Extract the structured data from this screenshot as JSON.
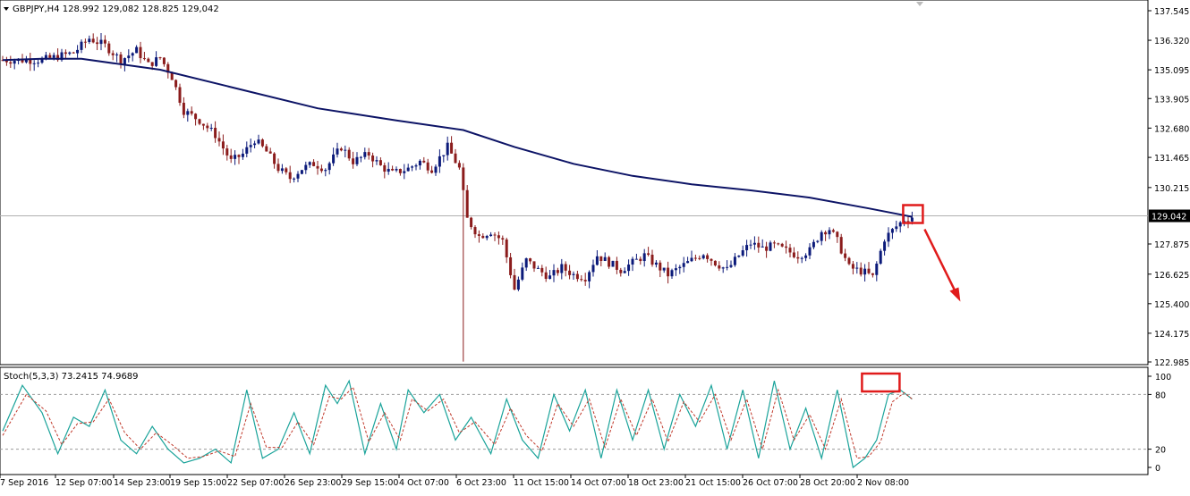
{
  "header": {
    "symbol_line": "GBPJPY,H4  128.992 129,082 128.825 129,042"
  },
  "stoch_header": {
    "label": "Stoch(5,3,3) 73.2415 74.9689"
  },
  "colors": {
    "bull": "#0b1a7a",
    "bear": "#8b1c1c",
    "ma": "#0d1466",
    "stoch_main": "#1aa39a",
    "stoch_signal": "#c0392b",
    "annotation": "#e01b1b",
    "axis": "#000000"
  },
  "chart_data": [
    {
      "type": "candlestick",
      "title": "GBPJPY,H4",
      "y_ticks": [
        "137.545",
        "136.320",
        "135.095",
        "133.905",
        "132.680",
        "131.465",
        "130.215",
        "127.875",
        "126.625",
        "125.400",
        "124.175",
        "122.985"
      ],
      "ylim": [
        122.985,
        137.545
      ],
      "current_price": "129.042",
      "x_ticks": [
        "7 Sep 2016",
        "12 Sep 07:00",
        "14 Sep 23:00",
        "19 Sep 15:00",
        "22 Sep 07:00",
        "26 Sep 23:00",
        "29 Sep 15:00",
        "4 Oct 07:00",
        "6 Oct 23:00",
        "11 Oct 15:00",
        "14 Oct 07:00",
        "18 Oct 23:00",
        "21 Oct 15:00",
        "26 Oct 07:00",
        "28 Oct 20:00",
        "2 Nov 08:00"
      ],
      "price_path": [
        [
          0,
          135.5
        ],
        [
          10,
          135.5
        ],
        [
          18,
          135.8
        ],
        [
          22,
          136.4
        ],
        [
          26,
          136.1
        ],
        [
          30,
          135.5
        ],
        [
          34,
          135.9
        ],
        [
          37,
          135.3
        ],
        [
          40,
          135.6
        ],
        [
          43,
          134.8
        ],
        [
          46,
          133.4
        ],
        [
          50,
          133.0
        ],
        [
          54,
          132.4
        ],
        [
          58,
          131.3
        ],
        [
          61,
          131.6
        ],
        [
          64,
          132.2
        ],
        [
          67,
          131.7
        ],
        [
          70,
          131.0
        ],
        [
          73,
          130.6
        ],
        [
          76,
          131.0
        ],
        [
          79,
          131.2
        ],
        [
          82,
          131.0
        ],
        [
          86,
          131.9
        ],
        [
          89,
          131.3
        ],
        [
          93,
          131.6
        ],
        [
          96,
          131.1
        ],
        [
          99,
          130.8
        ],
        [
          103,
          131.0
        ],
        [
          106,
          131.3
        ],
        [
          109,
          131.0
        ],
        [
          113,
          131.9
        ],
        [
          116,
          131.0
        ],
        [
          118,
          128.9
        ],
        [
          121,
          128.2
        ],
        [
          124,
          128.4
        ],
        [
          127,
          128.0
        ],
        [
          130,
          126.0
        ],
        [
          133,
          127.2
        ],
        [
          136,
          126.8
        ],
        [
          139,
          126.5
        ],
        [
          142,
          126.9
        ],
        [
          145,
          126.6
        ],
        [
          148,
          126.5
        ],
        [
          151,
          127.4
        ],
        [
          154,
          127.1
        ],
        [
          157,
          126.8
        ],
        [
          160,
          127.1
        ],
        [
          163,
          127.4
        ],
        [
          166,
          127.0
        ],
        [
          169,
          126.6
        ],
        [
          172,
          126.9
        ],
        [
          175,
          127.2
        ],
        [
          178,
          127.5
        ],
        [
          181,
          127.1
        ],
        [
          184,
          126.8
        ],
        [
          187,
          127.4
        ],
        [
          190,
          127.9
        ],
        [
          193,
          127.7
        ],
        [
          196,
          127.8
        ],
        [
          199,
          127.6
        ],
        [
          202,
          127.4
        ],
        [
          205,
          127.6
        ],
        [
          208,
          128.4
        ],
        [
          210,
          128.5
        ],
        [
          212,
          128.0
        ],
        [
          215,
          126.9
        ],
        [
          217,
          126.8
        ],
        [
          219,
          126.7
        ],
        [
          221,
          126.5
        ],
        [
          224,
          128.1
        ],
        [
          227,
          128.6
        ],
        [
          229,
          128.9
        ],
        [
          231,
          129.0
        ]
      ],
      "moving_average": [
        [
          0,
          135.5
        ],
        [
          10,
          135.55
        ],
        [
          20,
          135.55
        ],
        [
          40,
          135.1
        ],
        [
          60,
          134.3
        ],
        [
          80,
          133.5
        ],
        [
          100,
          133.0
        ],
        [
          117,
          132.6
        ],
        [
          130,
          131.9
        ],
        [
          145,
          131.2
        ],
        [
          160,
          130.7
        ],
        [
          175,
          130.35
        ],
        [
          190,
          130.1
        ],
        [
          205,
          129.8
        ],
        [
          220,
          129.35
        ],
        [
          231,
          129.0
        ]
      ],
      "annotations": [
        "highlight-box around last candles",
        "arrow pointing down"
      ]
    },
    {
      "type": "line",
      "title": "Stoch(5,3,3)",
      "y_ticks": [
        "100",
        "80",
        "20",
        "0"
      ],
      "ylim": [
        0,
        100
      ],
      "levels": [
        80,
        20
      ],
      "series": [
        {
          "values": [
            [
              0,
              40
            ],
            [
              5,
              90
            ],
            [
              10,
              60
            ],
            [
              14,
              15
            ],
            [
              18,
              55
            ],
            [
              22,
              45
            ],
            [
              26,
              85
            ],
            [
              30,
              30
            ],
            [
              34,
              15
            ],
            [
              38,
              45
            ],
            [
              42,
              20
            ],
            [
              46,
              5
            ],
            [
              50,
              10
            ],
            [
              54,
              20
            ],
            [
              58,
              5
            ],
            [
              62,
              85
            ],
            [
              66,
              10
            ],
            [
              70,
              20
            ],
            [
              74,
              60
            ],
            [
              78,
              15
            ],
            [
              82,
              90
            ],
            [
              85,
              70
            ],
            [
              88,
              95
            ],
            [
              92,
              15
            ],
            [
              96,
              70
            ],
            [
              100,
              20
            ],
            [
              103,
              85
            ],
            [
              107,
              60
            ],
            [
              111,
              80
            ],
            [
              115,
              30
            ],
            [
              119,
              55
            ],
            [
              124,
              15
            ],
            [
              128,
              75
            ],
            [
              132,
              30
            ],
            [
              136,
              10
            ],
            [
              140,
              80
            ],
            [
              144,
              40
            ],
            [
              148,
              85
            ],
            [
              152,
              10
            ],
            [
              156,
              85
            ],
            [
              160,
              30
            ],
            [
              164,
              85
            ],
            [
              168,
              20
            ],
            [
              172,
              80
            ],
            [
              176,
              45
            ],
            [
              180,
              90
            ],
            [
              184,
              20
            ],
            [
              188,
              85
            ],
            [
              192,
              10
            ],
            [
              196,
              95
            ],
            [
              200,
              20
            ],
            [
              204,
              65
            ],
            [
              208,
              10
            ],
            [
              212,
              85
            ],
            [
              216,
              0
            ],
            [
              219,
              10
            ],
            [
              222,
              30
            ],
            [
              225,
              80
            ],
            [
              228,
              85
            ],
            [
              231,
              75
            ]
          ]
        },
        {
          "values": [
            [
              0,
              35
            ],
            [
              6,
              80
            ],
            [
              11,
              62
            ],
            [
              15,
              25
            ],
            [
              19,
              48
            ],
            [
              23,
              50
            ],
            [
              27,
              75
            ],
            [
              31,
              38
            ],
            [
              35,
              20
            ],
            [
              39,
              38
            ],
            [
              43,
              25
            ],
            [
              47,
              10
            ],
            [
              51,
              12
            ],
            [
              55,
              18
            ],
            [
              59,
              12
            ],
            [
              63,
              70
            ],
            [
              67,
              22
            ],
            [
              71,
              22
            ],
            [
              75,
              50
            ],
            [
              79,
              25
            ],
            [
              83,
              78
            ],
            [
              86,
              75
            ],
            [
              89,
              88
            ],
            [
              93,
              28
            ],
            [
              97,
              60
            ],
            [
              101,
              30
            ],
            [
              104,
              75
            ],
            [
              108,
              62
            ],
            [
              112,
              75
            ],
            [
              116,
              38
            ],
            [
              120,
              50
            ],
            [
              125,
              25
            ],
            [
              129,
              65
            ],
            [
              133,
              35
            ],
            [
              137,
              18
            ],
            [
              141,
              70
            ],
            [
              145,
              45
            ],
            [
              149,
              75
            ],
            [
              153,
              22
            ],
            [
              157,
              75
            ],
            [
              161,
              35
            ],
            [
              165,
              75
            ],
            [
              169,
              28
            ],
            [
              173,
              72
            ],
            [
              177,
              50
            ],
            [
              181,
              80
            ],
            [
              185,
              30
            ],
            [
              189,
              75
            ],
            [
              193,
              20
            ],
            [
              197,
              85
            ],
            [
              201,
              30
            ],
            [
              205,
              58
            ],
            [
              209,
              20
            ],
            [
              213,
              75
            ],
            [
              217,
              10
            ],
            [
              220,
              12
            ],
            [
              223,
              28
            ],
            [
              226,
              72
            ],
            [
              229,
              82
            ],
            [
              231,
              74.97
            ]
          ]
        }
      ]
    }
  ]
}
